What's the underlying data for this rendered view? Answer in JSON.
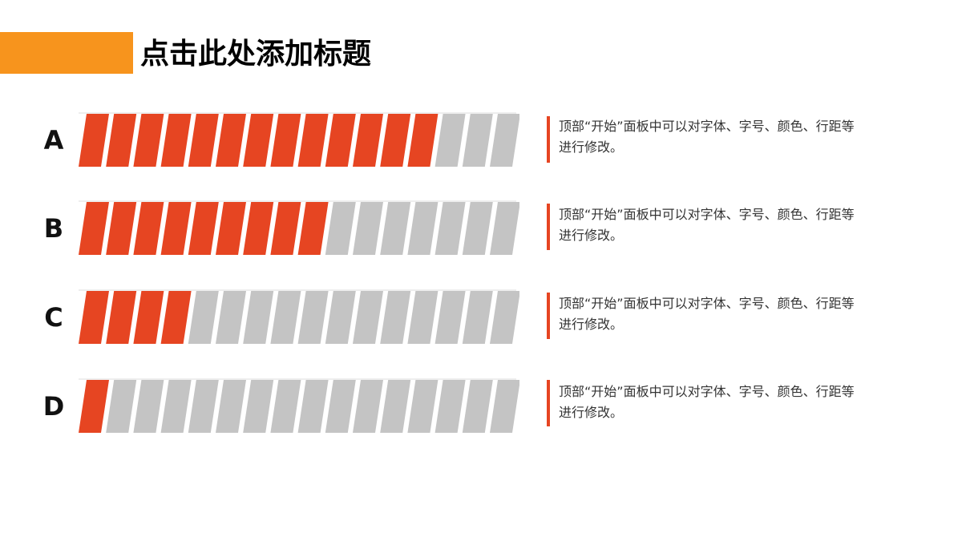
{
  "title": "点击此处添加标题",
  "colors": {
    "accent_orange": "#F7941D",
    "filled": "#E64522",
    "empty": "#C4C4C4",
    "line": "#E64522"
  },
  "total_segments": 16,
  "rows": [
    {
      "label": "A",
      "progress": 0.8125,
      "text": "顶部“开始”面板中可以对字体、字号、颜色、行距等进行修改。"
    },
    {
      "label": "B",
      "progress": 0.5625,
      "text": "顶部“开始”面板中可以对字体、字号、颜色、行距等进行修改。"
    },
    {
      "label": "C",
      "progress": 0.25,
      "text": "顶部“开始”面板中可以对字体、字号、颜色、行距等进行修改。"
    },
    {
      "label": "D",
      "progress": 0.09,
      "text": "顶部“开始”面板中可以对字体、字号、颜色、行距等进行修改。"
    }
  ]
}
